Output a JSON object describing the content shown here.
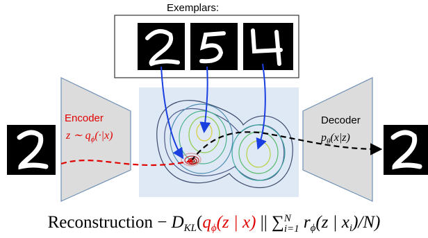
{
  "exemplars": {
    "label": "Exemplars:"
  },
  "encoder": {
    "label": "Encoder",
    "formula": [
      "z ∼ q",
      "ϕ",
      "(·|x)"
    ]
  },
  "decoder": {
    "label": "Decoder",
    "formula": [
      "p",
      "θ",
      "(x|z)"
    ]
  },
  "objective": [
    "Reconstruction − ",
    "D",
    "KL",
    "(",
    "q",
    "ϕ",
    "(z | x)",
    " || ",
    "∑",
    "N",
    "i=1",
    " r",
    "ϕ",
    "(z | x",
    "i",
    ")/N)"
  ]
}
